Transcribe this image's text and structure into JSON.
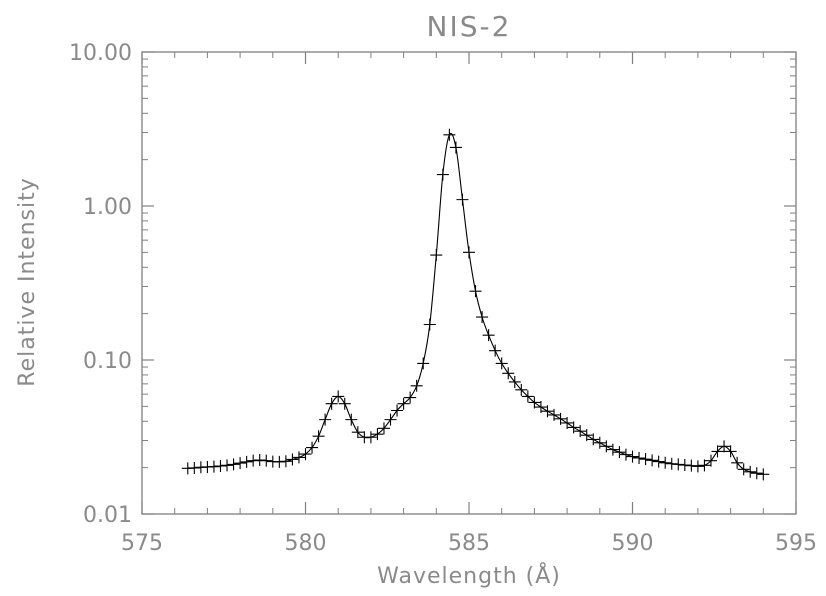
{
  "chart_data": {
    "type": "scatter",
    "title": "NIS-2",
    "xlabel": "Wavelength (Å)",
    "ylabel": "Relative Intensity",
    "xlim": [
      575,
      595
    ],
    "ylim": [
      0.01,
      10
    ],
    "yscale": "log",
    "xticks": [
      575,
      580,
      585,
      590,
      595
    ],
    "xtick_labels": [
      "575",
      "580",
      "585",
      "590",
      "595"
    ],
    "yticks": [
      0.01,
      0.1,
      1,
      10
    ],
    "ytick_labels": [
      "0.01",
      "0.10",
      "1.00",
      "10.00"
    ],
    "grid": false,
    "marker": "plus",
    "series": [
      {
        "x": [
          576.4,
          576.6,
          576.8,
          577.0,
          577.2,
          577.4,
          577.6,
          577.8,
          578.0,
          578.2,
          578.4,
          578.6,
          578.8,
          579.0,
          579.2,
          579.4,
          579.6,
          579.8,
          580.0,
          580.2,
          580.4,
          580.6,
          580.8,
          581.0,
          581.2,
          581.4,
          581.6,
          581.8,
          582.0,
          582.2,
          582.4,
          582.6,
          582.8,
          583.0,
          583.2,
          583.4,
          583.6,
          583.8,
          584.0,
          584.2,
          584.4,
          584.6,
          584.8,
          585.0,
          585.2,
          585.4,
          585.6,
          585.8,
          586.0,
          586.2,
          586.4,
          586.6,
          586.8,
          587.0,
          587.2,
          587.4,
          587.6,
          587.8,
          588.0,
          588.2,
          588.4,
          588.6,
          588.8,
          589.0,
          589.2,
          589.4,
          589.6,
          589.8,
          590.0,
          590.2,
          590.4,
          590.6,
          590.8,
          591.0,
          591.2,
          591.4,
          591.6,
          591.8,
          592.0,
          592.2,
          592.4,
          592.6,
          592.8,
          593.0,
          593.2,
          593.4,
          593.6,
          593.8,
          594.0
        ],
        "y": [
          0.0198,
          0.0199,
          0.0201,
          0.0202,
          0.0203,
          0.0205,
          0.0207,
          0.021,
          0.0214,
          0.0218,
          0.0222,
          0.0224,
          0.0222,
          0.0219,
          0.0218,
          0.022,
          0.0226,
          0.0233,
          0.0245,
          0.027,
          0.032,
          0.041,
          0.052,
          0.058,
          0.052,
          0.041,
          0.034,
          0.0315,
          0.0315,
          0.033,
          0.036,
          0.041,
          0.047,
          0.052,
          0.057,
          0.068,
          0.095,
          0.17,
          0.48,
          1.6,
          2.9,
          2.4,
          1.1,
          0.5,
          0.28,
          0.19,
          0.145,
          0.115,
          0.095,
          0.082,
          0.072,
          0.064,
          0.058,
          0.053,
          0.0495,
          0.0465,
          0.044,
          0.0415,
          0.039,
          0.0365,
          0.0345,
          0.0325,
          0.0305,
          0.029,
          0.0275,
          0.0262,
          0.0252,
          0.0243,
          0.0236,
          0.0231,
          0.0227,
          0.0223,
          0.0219,
          0.0215,
          0.0212,
          0.021,
          0.0208,
          0.0206,
          0.0204,
          0.0207,
          0.0222,
          0.0255,
          0.0275,
          0.0255,
          0.0215,
          0.0195,
          0.0188,
          0.0184,
          0.0181
        ]
      }
    ]
  }
}
